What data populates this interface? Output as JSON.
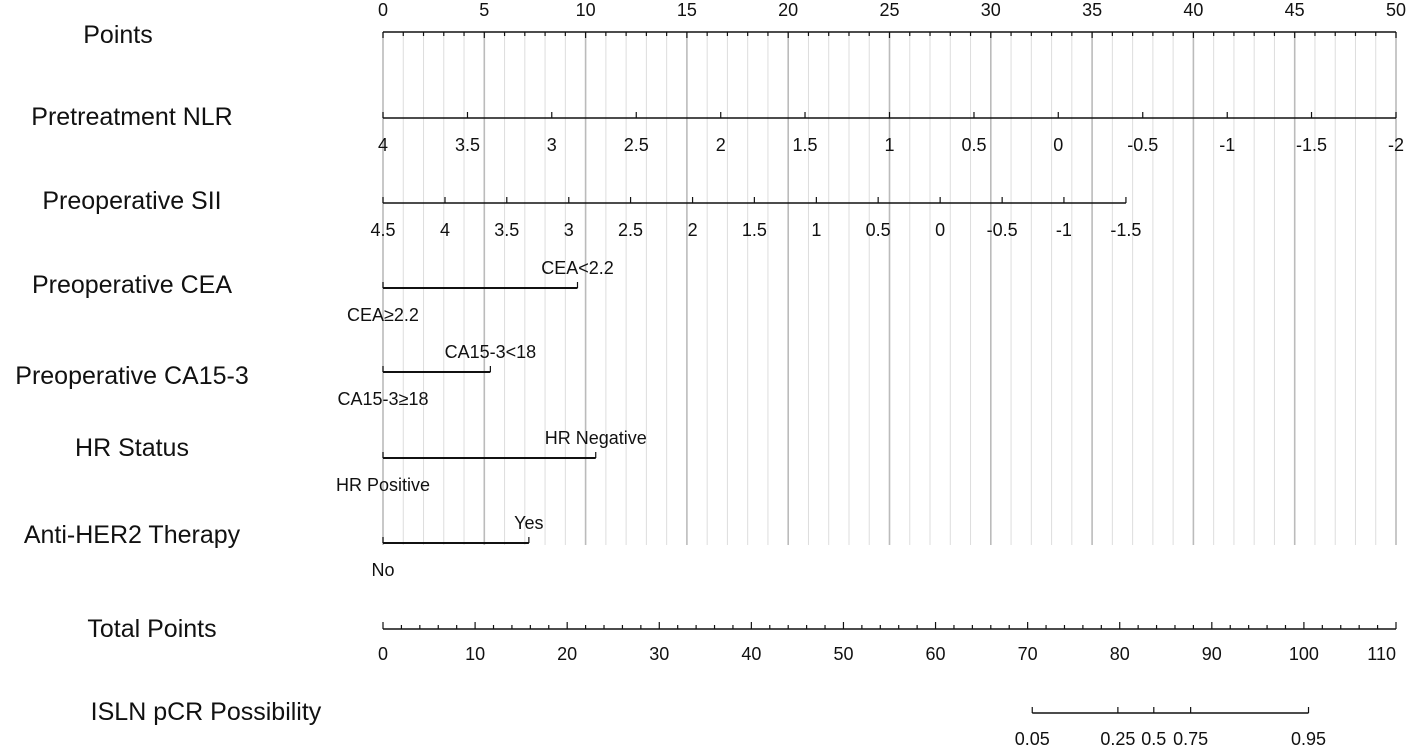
{
  "chart_data": {
    "type": "nomogram",
    "points_axis": {
      "label": "Points",
      "min": 0,
      "max": 50,
      "major_step": 5,
      "minor_step": 1,
      "ticks": [
        "0",
        "5",
        "10",
        "15",
        "20",
        "25",
        "30",
        "35",
        "40",
        "45",
        "50"
      ]
    },
    "grid": {
      "on": true,
      "major_every_points": 5,
      "minor_every_points": 1
    },
    "variables": [
      {
        "name": "Pretreatment NLR",
        "kind": "continuous",
        "range_points": [
          0,
          50
        ],
        "ticks": [
          {
            "label": "4",
            "points": 0
          },
          {
            "label": "3.5",
            "points": 4.17
          },
          {
            "label": "3",
            "points": 8.33
          },
          {
            "label": "2.5",
            "points": 12.5
          },
          {
            "label": "2",
            "points": 16.67
          },
          {
            "label": "1.5",
            "points": 20.83
          },
          {
            "label": "1",
            "points": 25
          },
          {
            "label": "0.5",
            "points": 29.17
          },
          {
            "label": "0",
            "points": 33.33
          },
          {
            "label": "-0.5",
            "points": 37.5
          },
          {
            "label": "-1",
            "points": 41.67
          },
          {
            "label": "-1.5",
            "points": 45.83
          },
          {
            "label": "-2",
            "points": 50
          }
        ]
      },
      {
        "name": "Preoperative SII",
        "kind": "continuous",
        "range_points": [
          0,
          36.67
        ],
        "ticks": [
          {
            "label": "4.5",
            "points": 0
          },
          {
            "label": "4",
            "points": 3.06
          },
          {
            "label": "3.5",
            "points": 6.11
          },
          {
            "label": "3",
            "points": 9.17
          },
          {
            "label": "2.5",
            "points": 12.22
          },
          {
            "label": "2",
            "points": 15.28
          },
          {
            "label": "1.5",
            "points": 18.33
          },
          {
            "label": "1",
            "points": 21.39
          },
          {
            "label": "0.5",
            "points": 24.44
          },
          {
            "label": "0",
            "points": 27.5
          },
          {
            "label": "-0.5",
            "points": 30.56
          },
          {
            "label": "-1",
            "points": 33.61
          },
          {
            "label": "-1.5",
            "points": 36.67
          }
        ]
      },
      {
        "name": "Preoperative CEA",
        "kind": "categorical",
        "levels": [
          {
            "label": "CEA≥2.2",
            "points": 0
          },
          {
            "label": "CEA<2.2",
            "points": 9.6
          }
        ]
      },
      {
        "name": "Preoperative CA15-3",
        "kind": "categorical",
        "levels": [
          {
            "label": "CA15-3≥18",
            "points": 0
          },
          {
            "label": "CA15-3<18",
            "points": 5.3
          }
        ]
      },
      {
        "name": "HR Status",
        "kind": "categorical",
        "levels": [
          {
            "label": "HR Positive",
            "points": 0
          },
          {
            "label": "HR Negative",
            "points": 10.5
          }
        ]
      },
      {
        "name": "Anti-HER2 Therapy",
        "kind": "categorical",
        "levels": [
          {
            "label": "No",
            "points": 0
          },
          {
            "label": "Yes",
            "points": 7.2
          }
        ]
      }
    ],
    "total_points_axis": {
      "label": "Total Points",
      "min": 0,
      "max": 110,
      "major_step": 10,
      "minor_step": 2,
      "ticks": [
        "0",
        "10",
        "20",
        "30",
        "40",
        "50",
        "60",
        "70",
        "80",
        "90",
        "100",
        "110"
      ]
    },
    "probability_axis": {
      "label": "ISLN pCR Possibility",
      "range_total_points": [
        70.5,
        100.5
      ],
      "ticks": [
        {
          "label": "0.05",
          "total_points": 70.5
        },
        {
          "label": "0.25",
          "total_points": 79.8
        },
        {
          "label": "0.5",
          "total_points": 83.7
        },
        {
          "label": "0.75",
          "total_points": 87.7
        },
        {
          "label": "0.95",
          "total_points": 100.5
        }
      ]
    }
  }
}
